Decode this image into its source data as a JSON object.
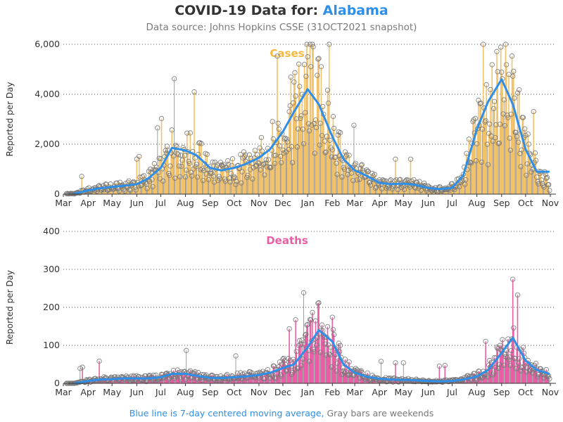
{
  "header": {
    "title_prefix": "COVID-19 Data for: ",
    "state": "Alabama",
    "subtitle": "Data source: Johns Hopkins CSSE (31OCT2021 snapshot)"
  },
  "footnote": {
    "blue_part": "Blue line is 7-day centered moving average,",
    "gray_part": "Gray bars are weekends"
  },
  "colors": {
    "cases": "#f4b942",
    "cases_bar": "#f2c26b",
    "deaths": "#e85fa6",
    "moving_average": "#2f8fe8",
    "weekend": "#888888",
    "marker": "#777777"
  },
  "chart_data": [
    {
      "type": "bar",
      "title": "Cases",
      "ylabel": "Reported per Day",
      "ylim": [
        0,
        6000
      ],
      "yticks": [
        "0",
        "2,000",
        "4,000",
        "6,000"
      ],
      "xticks": [
        "Mar",
        "Apr",
        "May",
        "Jun",
        "Jul",
        "Aug",
        "Sep",
        "Oct",
        "Nov",
        "Dec",
        "Jan",
        "Feb",
        "Mar",
        "Apr",
        "May",
        "Jun",
        "Jul",
        "Aug",
        "Sep",
        "Oct",
        "Nov"
      ],
      "x_range": [
        "2020-03-01",
        "2021-11-01"
      ],
      "grid": true,
      "series": [
        {
          "name": "daily",
          "x": [
            "2020-03-15",
            "2020-04-01",
            "2020-04-15",
            "2020-05-01",
            "2020-05-15",
            "2020-06-01",
            "2020-06-15",
            "2020-07-01",
            "2020-07-15",
            "2020-08-01",
            "2020-08-15",
            "2020-09-01",
            "2020-09-15",
            "2020-10-01",
            "2020-10-15",
            "2020-11-01",
            "2020-11-15",
            "2020-12-01",
            "2020-12-15",
            "2021-01-01",
            "2021-01-15",
            "2021-02-01",
            "2021-02-15",
            "2021-03-01",
            "2021-03-15",
            "2021-04-01",
            "2021-04-15",
            "2021-05-01",
            "2021-05-15",
            "2021-06-01",
            "2021-06-15",
            "2021-07-01",
            "2021-07-15",
            "2021-08-01",
            "2021-08-15",
            "2021-09-01",
            "2021-09-15",
            "2021-10-01",
            "2021-10-15",
            "2021-10-31"
          ],
          "values": [
            20,
            180,
            260,
            300,
            340,
            420,
            650,
            1100,
            1900,
            1800,
            1600,
            1100,
            900,
            1050,
            1200,
            1500,
            1900,
            2600,
            3500,
            4600,
            3900,
            2500,
            1500,
            1000,
            800,
            500,
            400,
            450,
            400,
            300,
            200,
            300,
            800,
            2700,
            3400,
            4700,
            3800,
            2000,
            1000,
            400
          ]
        },
        {
          "name": "7-day average",
          "x": [
            "2020-03-15",
            "2020-04-01",
            "2020-04-15",
            "2020-05-01",
            "2020-05-15",
            "2020-06-01",
            "2020-06-15",
            "2020-07-01",
            "2020-07-15",
            "2020-08-01",
            "2020-08-15",
            "2020-09-01",
            "2020-09-15",
            "2020-10-01",
            "2020-10-15",
            "2020-11-01",
            "2020-11-15",
            "2020-12-01",
            "2020-12-15",
            "2021-01-01",
            "2021-01-15",
            "2021-02-01",
            "2021-02-15",
            "2021-03-01",
            "2021-03-15",
            "2021-04-01",
            "2021-04-15",
            "2021-05-01",
            "2021-05-15",
            "2021-06-01",
            "2021-06-15",
            "2021-07-01",
            "2021-07-15",
            "2021-08-01",
            "2021-08-15",
            "2021-09-01",
            "2021-09-15",
            "2021-10-01",
            "2021-10-15",
            "2021-10-31"
          ],
          "values": [
            20,
            150,
            230,
            290,
            330,
            400,
            620,
            1050,
            1850,
            1750,
            1550,
            1050,
            950,
            1050,
            1200,
            1450,
            1800,
            2500,
            3300,
            4200,
            3600,
            2300,
            1400,
            950,
            750,
            450,
            400,
            420,
            380,
            250,
            200,
            250,
            750,
            2600,
            3700,
            4600,
            3600,
            1800,
            900,
            900
          ]
        }
      ]
    },
    {
      "type": "bar",
      "title": "Deaths",
      "ylabel": "Reported per Day",
      "ylim": [
        0,
        400
      ],
      "yticks": [
        "0",
        "100",
        "200",
        "300",
        "400"
      ],
      "xticks": [
        "Mar",
        "Apr",
        "May",
        "Jun",
        "Jul",
        "Aug",
        "Sep",
        "Oct",
        "Nov",
        "Dec",
        "Jan",
        "Feb",
        "Mar",
        "Apr",
        "May",
        "Jun",
        "Jul",
        "Aug",
        "Sep",
        "Oct",
        "Nov"
      ],
      "x_range": [
        "2020-03-01",
        "2021-11-01"
      ],
      "grid": true,
      "series": [
        {
          "name": "daily",
          "x": [
            "2020-03-15",
            "2020-04-01",
            "2020-04-15",
            "2020-05-01",
            "2020-05-15",
            "2020-06-01",
            "2020-06-15",
            "2020-07-01",
            "2020-07-15",
            "2020-08-01",
            "2020-08-15",
            "2020-09-01",
            "2020-09-15",
            "2020-10-01",
            "2020-10-15",
            "2020-11-01",
            "2020-11-15",
            "2020-12-01",
            "2020-12-15",
            "2021-01-01",
            "2021-01-15",
            "2021-02-01",
            "2021-02-15",
            "2021-03-01",
            "2021-03-15",
            "2021-04-01",
            "2021-04-15",
            "2021-05-01",
            "2021-05-15",
            "2021-06-01",
            "2021-06-15",
            "2021-07-01",
            "2021-07-15",
            "2021-08-01",
            "2021-08-15",
            "2021-09-01",
            "2021-09-15",
            "2021-10-01",
            "2021-10-15",
            "2021-10-31"
          ],
          "values": [
            0,
            8,
            12,
            12,
            14,
            14,
            14,
            18,
            30,
            25,
            22,
            15,
            15,
            18,
            20,
            25,
            30,
            45,
            55,
            110,
            160,
            120,
            50,
            30,
            20,
            12,
            10,
            10,
            8,
            6,
            6,
            8,
            12,
            20,
            40,
            90,
            110,
            60,
            35,
            25
          ]
        },
        {
          "name": "7-day average",
          "x": [
            "2020-03-15",
            "2020-04-01",
            "2020-04-15",
            "2020-05-01",
            "2020-05-15",
            "2020-06-01",
            "2020-06-15",
            "2020-07-01",
            "2020-07-15",
            "2020-08-01",
            "2020-08-15",
            "2020-09-01",
            "2020-09-15",
            "2020-10-01",
            "2020-10-15",
            "2020-11-01",
            "2020-11-15",
            "2020-12-01",
            "2020-12-15",
            "2021-01-01",
            "2021-01-15",
            "2021-02-01",
            "2021-02-15",
            "2021-03-01",
            "2021-03-15",
            "2021-04-01",
            "2021-04-15",
            "2021-05-01",
            "2021-05-15",
            "2021-06-01",
            "2021-06-15",
            "2021-07-01",
            "2021-07-15",
            "2021-08-01",
            "2021-08-15",
            "2021-09-01",
            "2021-09-15",
            "2021-10-01",
            "2021-10-15",
            "2021-10-31"
          ],
          "values": [
            0,
            6,
            10,
            11,
            13,
            13,
            13,
            16,
            25,
            25,
            20,
            14,
            14,
            16,
            18,
            22,
            28,
            40,
            50,
            95,
            140,
            110,
            50,
            28,
            18,
            12,
            10,
            9,
            8,
            6,
            5,
            6,
            10,
            18,
            35,
            80,
            120,
            60,
            35,
            25
          ]
        }
      ]
    }
  ]
}
